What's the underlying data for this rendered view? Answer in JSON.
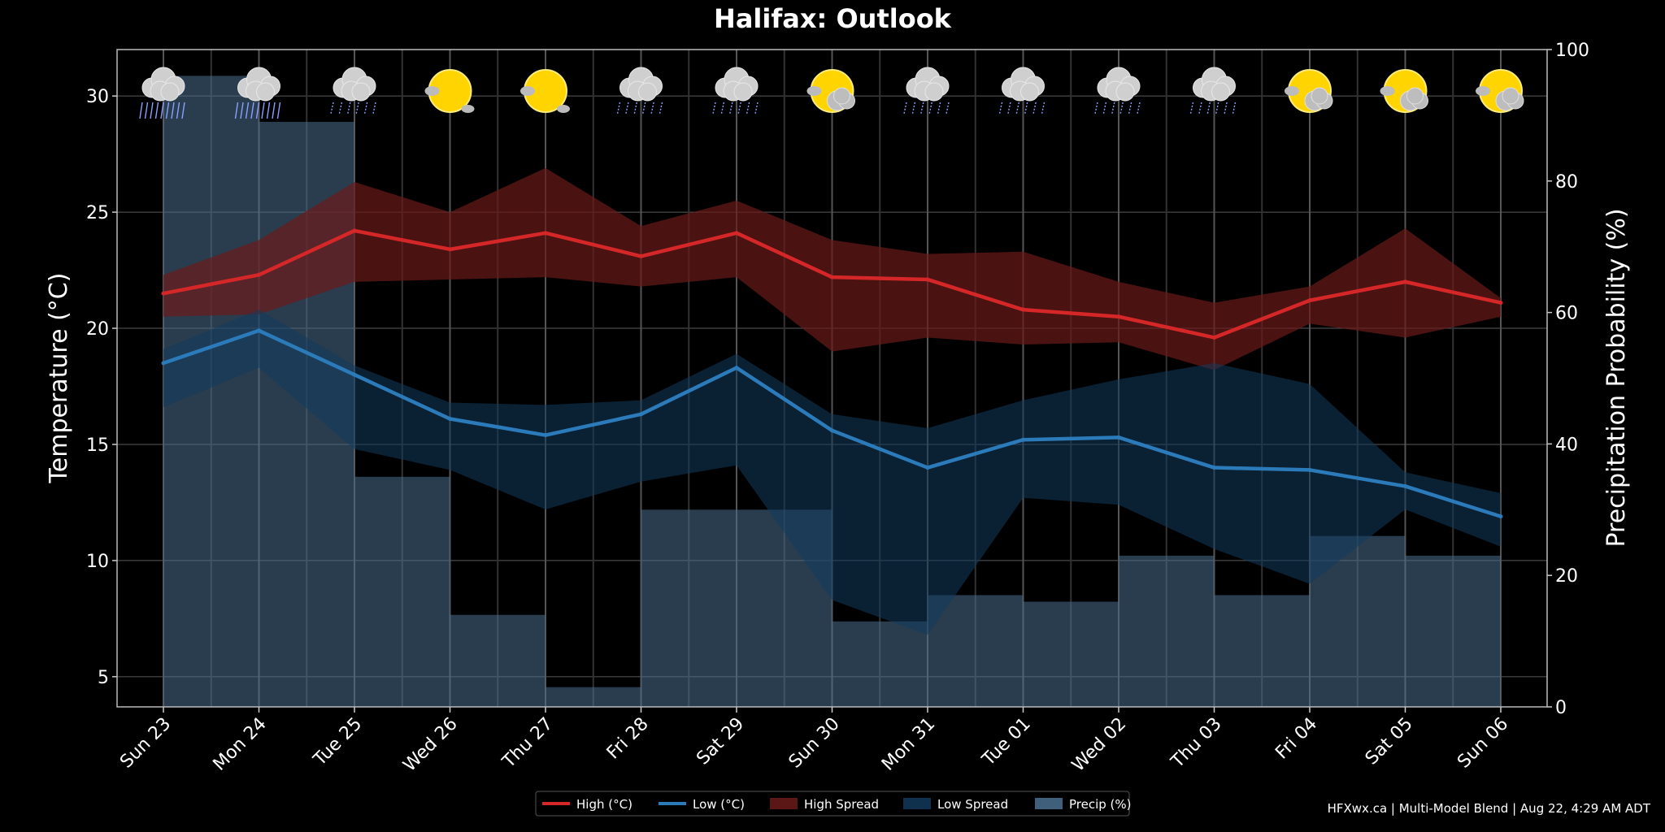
{
  "chart_data": {
    "type": "line",
    "title": "Halifax: Outlook",
    "ylabel_left": "Temperature (°C)",
    "ylabel_right": "Precipitation Probability (%)",
    "ylim_left": [
      3.7,
      32
    ],
    "ylim_right": [
      0,
      100
    ],
    "yticks_left": [
      "5",
      "10",
      "15",
      "20",
      "25",
      "30"
    ],
    "yticks_right": [
      "0",
      "20",
      "40",
      "60",
      "80",
      "100"
    ],
    "categories": [
      "Sun 23",
      "Mon 24",
      "Tue 25",
      "Wed 26",
      "Thu 27",
      "Fri 28",
      "Sat 29",
      "Sun 30",
      "Mon 31",
      "Tue 01",
      "Wed 02",
      "Thu 03",
      "Fri 04",
      "Sat 05",
      "Sun 06"
    ],
    "grid": true,
    "series": [
      {
        "name": "High (°C)",
        "color": "#d62728",
        "values": [
          21.5,
          22.3,
          24.2,
          23.4,
          24.1,
          23.1,
          24.1,
          22.2,
          22.1,
          20.8,
          20.5,
          19.6,
          21.2,
          22.0,
          21.1
        ]
      },
      {
        "name": "Low (°C)",
        "color": "#2b7bba",
        "values": [
          18.5,
          19.9,
          18.0,
          16.1,
          15.4,
          16.3,
          18.3,
          15.6,
          14.0,
          15.2,
          15.3,
          14.0,
          13.9,
          13.2,
          11.9
        ]
      }
    ],
    "spreads": [
      {
        "name": "High Spread",
        "color": "#6b1a1a",
        "upper": [
          22.3,
          23.8,
          26.3,
          25.0,
          26.9,
          24.4,
          25.5,
          23.8,
          23.2,
          23.3,
          22.0,
          21.1,
          21.8,
          24.3,
          21.3
        ],
        "lower": [
          20.5,
          20.6,
          22.0,
          22.1,
          22.2,
          21.8,
          22.2,
          19.0,
          19.6,
          19.3,
          19.4,
          18.2,
          20.2,
          19.6,
          20.5
        ]
      },
      {
        "name": "Low Spread",
        "color": "#123a5c",
        "upper": [
          19.1,
          20.8,
          18.4,
          16.8,
          16.7,
          16.9,
          18.9,
          16.3,
          15.7,
          16.9,
          17.8,
          18.5,
          17.6,
          13.8,
          12.9
        ],
        "lower": [
          16.6,
          18.3,
          14.8,
          13.9,
          12.2,
          13.4,
          14.1,
          8.3,
          6.8,
          12.7,
          12.4,
          10.5,
          9.0,
          12.2,
          10.6
        ]
      }
    ],
    "precip": {
      "name": "Precip (%)",
      "color": "#4a7090",
      "values": [
        96,
        89,
        35,
        14,
        3,
        30,
        30,
        13,
        17,
        16,
        23,
        17,
        26,
        23,
        23
      ]
    },
    "weather_icons": [
      "heavy-rain-icon",
      "heavy-rain-icon",
      "light-rain-icon",
      "sun-icon",
      "sun-icon",
      "light-rain-icon",
      "rain-icon",
      "partly-cloudy-icon",
      "light-rain-icon",
      "light-rain-icon",
      "rain-icon",
      "rain-icon",
      "partly-cloudy-icon",
      "partly-cloudy-icon",
      "partly-cloudy-icon"
    ],
    "legend": {
      "placement": "bottom-center",
      "items": [
        {
          "label": "High (°C)",
          "kind": "line",
          "color": "#d62728"
        },
        {
          "label": "Low (°C)",
          "kind": "line",
          "color": "#2b7bba"
        },
        {
          "label": "High Spread",
          "kind": "box",
          "color": "#6b1a1a"
        },
        {
          "label": "Low Spread",
          "kind": "box",
          "color": "#123a5c"
        },
        {
          "label": "Precip (%)",
          "kind": "box",
          "color": "#4a7090"
        }
      ]
    },
    "footer": "HFXwx.ca | Multi-Model Blend | Aug 22, 4:29 AM ADT"
  }
}
